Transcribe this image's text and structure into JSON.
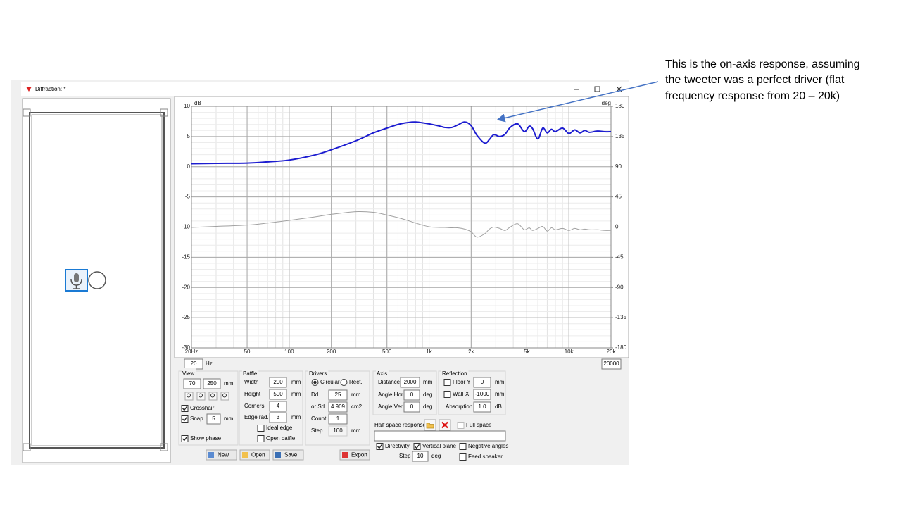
{
  "window": {
    "title": "Diffraction: *"
  },
  "annotation": {
    "lines": [
      "This is the on-axis response, assuming",
      "the tweeter was a perfect driver (flat",
      "frequency response from 20 – 20k)"
    ]
  },
  "chart_data": {
    "type": "line",
    "y_label": "dB",
    "y2_label": "deg",
    "log_x": true,
    "grid": true,
    "xlim": [
      20,
      20000
    ],
    "xticks": [
      {
        "value": 20,
        "label": "20Hz"
      },
      50,
      100,
      200,
      500,
      {
        "value": 1000,
        "label": "1k"
      },
      {
        "value": 2000,
        "label": "2k"
      },
      {
        "value": 5000,
        "label": "5k"
      },
      {
        "value": 10000,
        "label": "10k"
      },
      {
        "value": 20000,
        "label": "20k"
      }
    ],
    "ylim": [
      -30,
      10
    ],
    "yticks": [
      -30,
      -25,
      -20,
      -15,
      -10,
      -5,
      0,
      5,
      10
    ],
    "y2lim": [
      -180,
      180
    ],
    "y2ticks": [
      -180,
      -135,
      -90,
      -45,
      0,
      45,
      90,
      135,
      180
    ],
    "x": [
      20,
      30,
      50,
      70,
      100,
      150,
      200,
      300,
      400,
      500,
      600,
      700,
      800,
      1000,
      1200,
      1300,
      1450,
      1600,
      1800,
      2000,
      2200,
      2500,
      2700,
      2900,
      3200,
      3500,
      3800,
      4300,
      4800,
      5200,
      5500,
      6000,
      6500,
      7000,
      7500,
      8000,
      9000,
      10000,
      11000,
      12000,
      13000,
      14000,
      16000,
      18000,
      20000
    ],
    "series": [
      {
        "color": "#1c1cd0",
        "values": [
          0.5,
          0.55,
          0.6,
          0.8,
          1.1,
          1.9,
          2.8,
          4.3,
          5.6,
          6.4,
          7.0,
          7.3,
          7.4,
          7.1,
          6.7,
          6.5,
          6.5,
          6.9,
          7.4,
          6.8,
          5.2,
          3.9,
          4.5,
          5.3,
          5.0,
          5.4,
          6.5,
          7.1,
          5.8,
          6.7,
          6.3,
          4.6,
          6.4,
          5.6,
          6.2,
          5.8,
          6.4,
          5.5,
          6.1,
          5.6,
          6.0,
          5.7,
          5.9,
          5.8,
          5.8
        ]
      },
      {
        "color": "#a0a0a0",
        "axis": "y2",
        "values": [
          -0.5,
          1,
          3,
          6,
          10,
          15,
          19,
          23,
          22,
          18,
          14,
          10,
          6,
          0.5,
          -0.5,
          -0.5,
          -1,
          -1,
          -3,
          -7,
          -15,
          -10,
          -3,
          0,
          -2,
          -5,
          0,
          5,
          -4,
          -1,
          -5,
          -2,
          1,
          -6,
          -1,
          -4,
          -2,
          -5,
          -2,
          -4,
          -3,
          -4,
          -4,
          -5,
          -5
        ]
      }
    ]
  },
  "frequency_range": {
    "min": "20",
    "unit": "Hz",
    "max": "20000"
  },
  "view": {
    "title": "View",
    "x": "70",
    "y": "250",
    "unit": "mm",
    "crosshair": {
      "label": "Crosshair",
      "checked": true
    },
    "snap": {
      "label": "Snap",
      "checked": true,
      "value": "5",
      "unit": "mm"
    },
    "show_phase": {
      "label": "Show phase",
      "checked": true
    }
  },
  "baffle": {
    "title": "Baffle",
    "width": {
      "label": "Width",
      "value": "200",
      "unit": "mm"
    },
    "height": {
      "label": "Height",
      "value": "500",
      "unit": "mm"
    },
    "corners": {
      "label": "Corners",
      "value": "4"
    },
    "edge_radius": {
      "label": "Edge rad.",
      "value": "3",
      "unit": "mm"
    },
    "ideal_edge": {
      "label": "Ideal edge",
      "checked": false
    },
    "open_baffle": {
      "label": "Open baffle",
      "checked": false
    }
  },
  "drivers": {
    "title": "Drivers",
    "circular": {
      "label": "Circular",
      "selected": true
    },
    "rect": {
      "label": "Rect.",
      "selected": false
    },
    "dd": {
      "label": "Dd",
      "value": "25",
      "unit": "mm"
    },
    "sd": {
      "label": "or Sd",
      "value": "4.909",
      "unit": "cm2"
    },
    "count": {
      "label": "Count",
      "value": "1"
    },
    "step": {
      "label": "Step",
      "value": "100",
      "unit": "mm",
      "disabled": true
    }
  },
  "axis": {
    "title": "Axis",
    "distance": {
      "label": "Distance",
      "value": "2000",
      "unit": "mm"
    },
    "angle_hor": {
      "label": "Angle Hor",
      "value": "0",
      "unit": "deg"
    },
    "angle_ver": {
      "label": "Angle Ver",
      "value": "0",
      "unit": "deg"
    }
  },
  "reflection": {
    "title": "Reflection",
    "floor": {
      "label": "Floor Y",
      "checked": false,
      "value": "0",
      "unit": "mm"
    },
    "wall": {
      "label": "Wall",
      "axis": "X",
      "checked": false,
      "value": "-1000",
      "unit": "mm"
    },
    "absorption": {
      "label": "Absorption",
      "value": "1.0",
      "unit": "dB"
    }
  },
  "half_space": {
    "label": "Half space response",
    "full_space": {
      "label": "Full space",
      "checked": false,
      "disabled": true
    }
  },
  "directivity": {
    "directivity": {
      "label": "Directivity",
      "checked": true
    },
    "vertical_plane": {
      "label": "Vertical plane",
      "checked": true
    },
    "negative_angles": {
      "label": "Negative angles",
      "checked": false
    },
    "step": {
      "label": "Step",
      "value": "10",
      "unit": "deg"
    },
    "feed_speaker": {
      "label": "Feed speaker",
      "checked": false
    }
  },
  "buttons": [
    "New",
    "Open",
    "Save",
    "Export"
  ]
}
